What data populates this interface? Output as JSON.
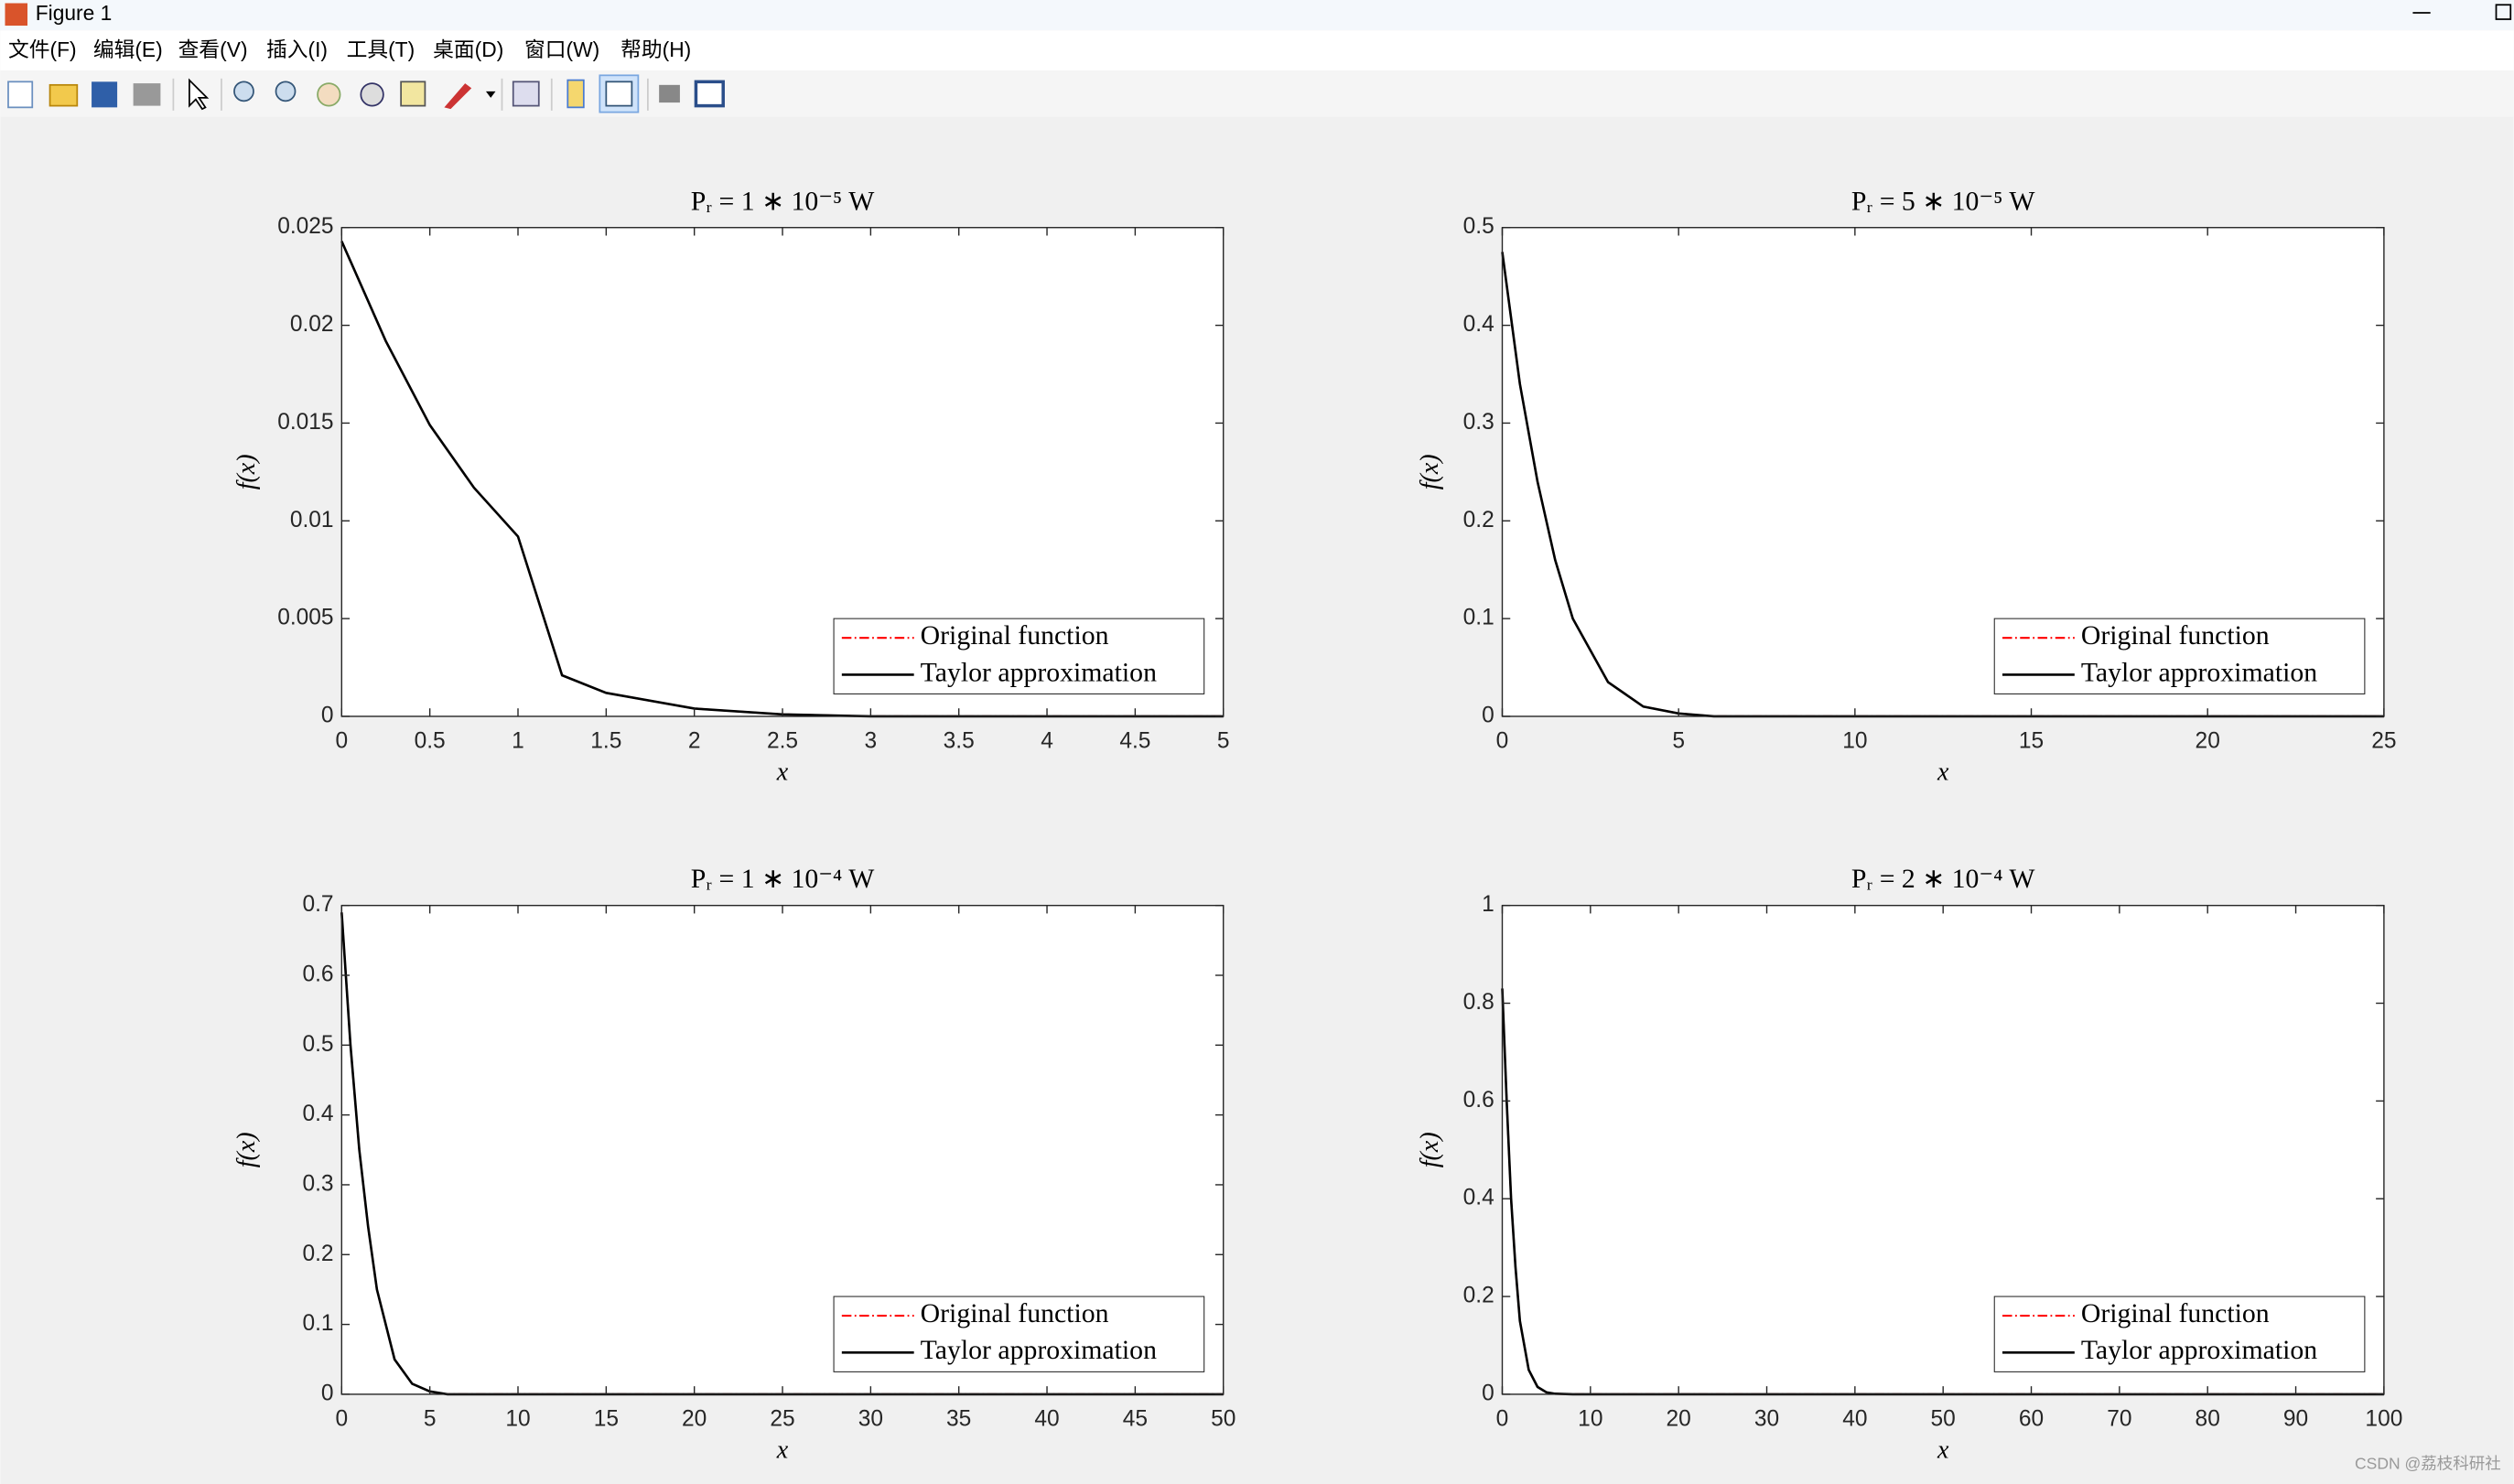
{
  "window": {
    "title": "Figure 1",
    "menu": [
      "文件(F)",
      "编辑(E)",
      "查看(V)",
      "插入(I)",
      "工具(T)",
      "桌面(D)",
      "窗口(W)",
      "帮助(H)"
    ],
    "watermark": "CSDN @荔枝科研社"
  },
  "chart_data": [
    {
      "type": "line",
      "title": "Pᵣ = 1 ∗ 10⁻⁵ W",
      "xlabel": "x",
      "ylabel": "f(x)",
      "legend": "southeast",
      "x": [
        0,
        0.25,
        0.5,
        0.75,
        1,
        1.25,
        1.5,
        2,
        2.5,
        3,
        5
      ],
      "series": [
        {
          "name": "Original function",
          "color": "#ff0000",
          "dash": "dashdot",
          "values": [
            0.0243,
            0.0192,
            0.0149,
            0.0117,
            0.0092,
            0.0021,
            0.0012,
            0.0004,
            0.0001,
            0,
            0
          ]
        },
        {
          "name": "Taylor approximation",
          "color": "#000000",
          "dash": "solid",
          "values": [
            0.0243,
            0.0192,
            0.0149,
            0.0117,
            0.0092,
            0.0021,
            0.0012,
            0.0004,
            0.0001,
            0,
            0
          ]
        }
      ],
      "xlim": [
        0,
        5
      ],
      "ylim": [
        0,
        0.025
      ],
      "xticks": [
        0,
        0.5,
        1,
        1.5,
        2,
        2.5,
        3,
        3.5,
        4,
        4.5,
        5
      ],
      "yticks": [
        0,
        0.005,
        0.01,
        0.015,
        0.02,
        0.025
      ]
    },
    {
      "type": "line",
      "title": "Pᵣ = 5 ∗ 10⁻⁵ W",
      "xlabel": "x",
      "ylabel": "f(x)",
      "legend": "southeast",
      "x": [
        0,
        0.5,
        1,
        1.5,
        2,
        3,
        4,
        5,
        6,
        25
      ],
      "series": [
        {
          "name": "Original function",
          "color": "#ff0000",
          "dash": "dashdot",
          "values": [
            0.475,
            0.34,
            0.24,
            0.16,
            0.1,
            0.035,
            0.01,
            0.003,
            0,
            0
          ]
        },
        {
          "name": "Taylor approximation",
          "color": "#000000",
          "dash": "solid",
          "values": [
            0.475,
            0.34,
            0.24,
            0.16,
            0.1,
            0.035,
            0.01,
            0.003,
            0,
            0
          ]
        }
      ],
      "xlim": [
        0,
        25
      ],
      "ylim": [
        0,
        0.5
      ],
      "xticks": [
        0,
        5,
        10,
        15,
        20,
        25
      ],
      "yticks": [
        0,
        0.1,
        0.2,
        0.3,
        0.4,
        0.5
      ]
    },
    {
      "type": "line",
      "title": "Pᵣ = 1 ∗ 10⁻⁴ W",
      "xlabel": "x",
      "ylabel": "f(x)",
      "legend": "southeast",
      "x": [
        0,
        0.5,
        1,
        1.5,
        2,
        3,
        4,
        5,
        6,
        50
      ],
      "series": [
        {
          "name": "Original function",
          "color": "#ff0000",
          "dash": "dashdot",
          "values": [
            0.69,
            0.5,
            0.35,
            0.24,
            0.15,
            0.05,
            0.015,
            0.004,
            0,
            0
          ]
        },
        {
          "name": "Taylor approximation",
          "color": "#000000",
          "dash": "solid",
          "values": [
            0.69,
            0.5,
            0.35,
            0.24,
            0.15,
            0.05,
            0.015,
            0.004,
            0,
            0
          ]
        }
      ],
      "xlim": [
        0,
        50
      ],
      "ylim": [
        0,
        0.7
      ],
      "xticks": [
        0,
        5,
        10,
        15,
        20,
        25,
        30,
        35,
        40,
        45,
        50
      ],
      "yticks": [
        0,
        0.1,
        0.2,
        0.3,
        0.4,
        0.5,
        0.6,
        0.7
      ]
    },
    {
      "type": "line",
      "title": "Pᵣ = 2 ∗ 10⁻⁴ W",
      "xlabel": "x",
      "ylabel": "f(x)",
      "legend": "southeast",
      "x": [
        0,
        0.5,
        1,
        1.5,
        2,
        3,
        4,
        5,
        6,
        8,
        100
      ],
      "series": [
        {
          "name": "Original function",
          "color": "#ff0000",
          "dash": "dashdot",
          "values": [
            0.83,
            0.6,
            0.4,
            0.26,
            0.15,
            0.05,
            0.015,
            0.004,
            0.001,
            0,
            0
          ]
        },
        {
          "name": "Taylor approximation",
          "color": "#000000",
          "dash": "solid",
          "values": [
            0.83,
            0.6,
            0.4,
            0.26,
            0.15,
            0.05,
            0.015,
            0.004,
            0.001,
            0,
            0
          ]
        }
      ],
      "xlim": [
        0,
        100
      ],
      "ylim": [
        0,
        1
      ],
      "xticks": [
        0,
        10,
        20,
        30,
        40,
        50,
        60,
        70,
        80,
        90,
        100
      ],
      "yticks": [
        0,
        0.2,
        0.4,
        0.6,
        0.8,
        1
      ]
    }
  ]
}
